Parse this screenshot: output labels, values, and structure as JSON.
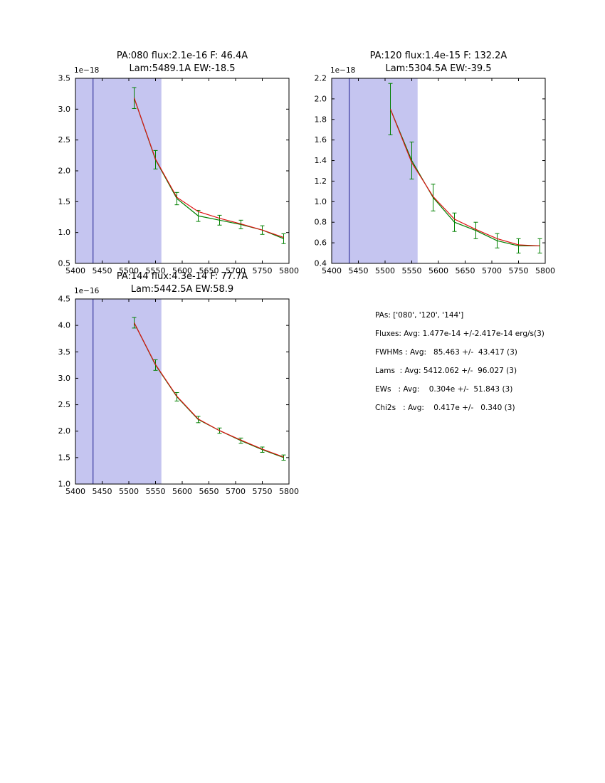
{
  "colors": {
    "shade": "#c5c5f0",
    "vline": "#1a1a8c",
    "spectrum": "#008000",
    "fit": "#dd1111",
    "axes": "#000000"
  },
  "summary": {
    "lines": [
      "PAs: ['080', '120', '144']",
      "Fluxes: Avg: 1.477e-14 +/-2.417e-14 erg/s(3)",
      "FWHMs : Avg:   85.463 +/-  43.417 (3)",
      "Lams  : Avg: 5412.062 +/-  96.027 (3)",
      "EWs   : Avg:    0.304e +/-  51.843 (3)",
      "Chi2s   : Avg:    0.417e +/-   0.340 (3)"
    ]
  },
  "chart_data": [
    {
      "type": "line",
      "name": "pa080",
      "title1": "PA:080 flux:2.1e-16 F: 46.4A",
      "title2": "Lam:5489.1A EW:-18.5",
      "offset": "1e−18",
      "xlim": [
        5400,
        5800
      ],
      "ylim": [
        0.5,
        3.5
      ],
      "xticks": [
        5400,
        5450,
        5500,
        5550,
        5600,
        5650,
        5700,
        5750,
        5800
      ],
      "yticks": [
        0.5,
        1.0,
        1.5,
        2.0,
        2.5,
        3.0,
        3.5
      ],
      "shade": [
        5400,
        5561
      ],
      "vline": 5433,
      "x": [
        5510,
        5550,
        5590,
        5630,
        5670,
        5710,
        5750,
        5790
      ],
      "series": [
        {
          "name": "spectrum",
          "color": "#008000",
          "values": [
            3.18,
            2.18,
            1.55,
            1.27,
            1.2,
            1.13,
            1.04,
            0.9
          ],
          "yerr": [
            0.17,
            0.15,
            0.1,
            0.09,
            0.08,
            0.07,
            0.07,
            0.08
          ]
        },
        {
          "name": "fit",
          "color": "#dd1111",
          "values": [
            3.18,
            2.19,
            1.57,
            1.34,
            1.23,
            1.14,
            1.04,
            0.92
          ]
        }
      ]
    },
    {
      "type": "line",
      "name": "pa120",
      "title1": "PA:120 flux:1.4e-15 F: 132.2A",
      "title2": "Lam:5304.5A EW:-39.5",
      "offset": "1e−18",
      "xlim": [
        5400,
        5800
      ],
      "ylim": [
        0.4,
        2.2
      ],
      "xticks": [
        5400,
        5450,
        5500,
        5550,
        5600,
        5650,
        5700,
        5750,
        5800
      ],
      "yticks": [
        0.4,
        0.6,
        0.8,
        1.0,
        1.2,
        1.4,
        1.6,
        1.8,
        2.0,
        2.2
      ],
      "shade": [
        5400,
        5561
      ],
      "vline": 5433,
      "x": [
        5510,
        5550,
        5590,
        5630,
        5670,
        5710,
        5750,
        5790
      ],
      "series": [
        {
          "name": "spectrum",
          "color": "#008000",
          "values": [
            1.9,
            1.4,
            1.04,
            0.8,
            0.72,
            0.62,
            0.57,
            0.57
          ],
          "yerr": [
            0.25,
            0.18,
            0.13,
            0.09,
            0.08,
            0.07,
            0.07,
            0.07
          ]
        },
        {
          "name": "fit",
          "color": "#dd1111",
          "values": [
            1.9,
            1.38,
            1.05,
            0.83,
            0.73,
            0.64,
            0.58,
            0.57
          ]
        }
      ]
    },
    {
      "type": "line",
      "name": "pa144",
      "title1": "PA:144 flux:4.3e-14 F: 77.7A",
      "title2": "Lam:5442.5A EW:58.9",
      "offset": "1e−16",
      "xlim": [
        5400,
        5800
      ],
      "ylim": [
        1.0,
        4.5
      ],
      "xticks": [
        5400,
        5450,
        5500,
        5550,
        5600,
        5650,
        5700,
        5750,
        5800
      ],
      "yticks": [
        1.0,
        1.5,
        2.0,
        2.5,
        3.0,
        3.5,
        4.0,
        4.5
      ],
      "shade": [
        5400,
        5561
      ],
      "vline": 5433,
      "x": [
        5510,
        5550,
        5590,
        5630,
        5670,
        5710,
        5750,
        5790
      ],
      "series": [
        {
          "name": "spectrum",
          "color": "#008000",
          "values": [
            4.05,
            3.25,
            2.65,
            2.22,
            2.01,
            1.82,
            1.65,
            1.5
          ],
          "yerr": [
            0.1,
            0.1,
            0.08,
            0.06,
            0.05,
            0.05,
            0.05,
            0.05
          ]
        },
        {
          "name": "fit",
          "color": "#dd1111",
          "values": [
            4.05,
            3.26,
            2.66,
            2.23,
            2.01,
            1.83,
            1.66,
            1.51
          ]
        }
      ]
    }
  ]
}
